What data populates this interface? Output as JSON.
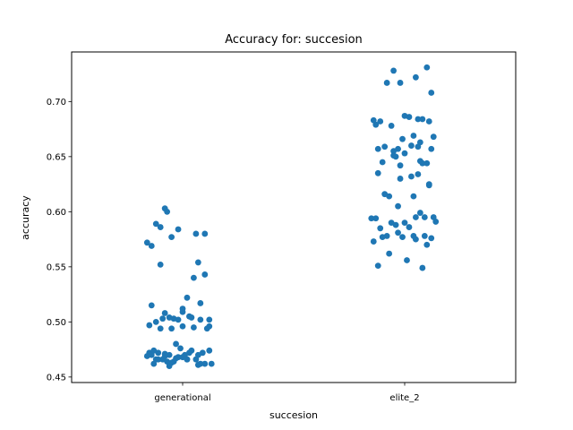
{
  "chart_data": {
    "type": "scatter",
    "title": "Accuracy for: succesion",
    "xlabel": "succesion",
    "ylabel": "accuracy",
    "categories": [
      "generational",
      "elite_2"
    ],
    "ylim": [
      0.445,
      0.745
    ],
    "yticks": [
      0.45,
      0.5,
      0.55,
      0.6,
      0.65,
      0.7
    ],
    "ytick_labels": [
      "0.45",
      "0.50",
      "0.55",
      "0.60",
      "0.65",
      "0.70"
    ],
    "point_color": "#1f77b4",
    "grid": false,
    "series": [
      {
        "category": "generational",
        "jitter": [
          -0.16,
          -0.14,
          -0.12,
          -0.1,
          -0.07,
          -0.08,
          -0.05,
          -0.02,
          0.1,
          0.06,
          0.07,
          -0.1,
          -0.14,
          -0.08,
          0.0,
          0.05,
          0.1,
          0.02,
          -0.06,
          -0.02,
          0.04,
          0.08,
          0.12,
          0.0,
          -0.15,
          -0.12,
          -0.09,
          -0.04,
          0.03,
          0.08,
          0.12,
          -0.1,
          -0.05,
          0.0,
          0.05,
          0.11,
          -0.15,
          -0.11,
          -0.06,
          -0.01,
          0.04,
          0.09,
          0.13,
          -0.16,
          -0.12,
          -0.08,
          -0.03,
          0.02,
          0.07,
          0.12,
          -0.14,
          -0.09,
          -0.04,
          0.01,
          0.06,
          -0.13,
          -0.07,
          -0.02,
          0.03,
          0.08,
          -0.11,
          -0.05,
          0.0,
          -0.13,
          -0.08,
          -0.03,
          0.02,
          0.1,
          -0.06,
          0.07
        ],
        "values": [
          0.572,
          0.569,
          0.589,
          0.586,
          0.6,
          0.603,
          0.577,
          0.584,
          0.58,
          0.58,
          0.554,
          0.552,
          0.515,
          0.508,
          0.512,
          0.54,
          0.543,
          0.522,
          0.504,
          0.502,
          0.504,
          0.502,
          0.496,
          0.496,
          0.497,
          0.5,
          0.503,
          0.503,
          0.505,
          0.517,
          0.502,
          0.494,
          0.494,
          0.509,
          0.495,
          0.494,
          0.472,
          0.472,
          0.47,
          0.476,
          0.474,
          0.472,
          0.462,
          0.469,
          0.466,
          0.469,
          0.467,
          0.466,
          0.47,
          0.474,
          0.47,
          0.466,
          0.464,
          0.47,
          0.466,
          0.462,
          0.464,
          0.468,
          0.472,
          0.462,
          0.466,
          0.463,
          0.468,
          0.474,
          0.471,
          0.48,
          0.466,
          0.462,
          0.46,
          0.461
        ]
      },
      {
        "category": "elite_2",
        "jitter": [
          -0.05,
          0.1,
          0.05,
          -0.02,
          -0.08,
          0.12,
          0.06,
          -0.14,
          0.02,
          -0.11,
          0.0,
          0.08,
          -0.06,
          0.13,
          -0.13,
          -0.01,
          0.04,
          0.11,
          -0.09,
          0.06,
          -0.03,
          0.12,
          0.03,
          -0.12,
          -0.05,
          0.0,
          0.07,
          0.1,
          -0.1,
          -0.04,
          0.08,
          -0.12,
          -0.02,
          0.06,
          0.11,
          -0.07,
          0.04,
          -0.09,
          -0.03,
          0.05,
          0.13,
          -0.15,
          -0.06,
          0.0,
          0.07,
          -0.11,
          -0.04,
          0.02,
          0.09,
          -0.13,
          -0.08,
          -0.01,
          0.05,
          0.12,
          -0.1,
          -0.03,
          0.04,
          0.1,
          -0.14,
          -0.07,
          0.01,
          0.08,
          -0.12,
          -0.05,
          0.03,
          0.11,
          0.07,
          -0.02,
          0.09,
          0.14
        ],
        "values": [
          0.728,
          0.731,
          0.722,
          0.717,
          0.717,
          0.708,
          0.684,
          0.683,
          0.686,
          0.682,
          0.687,
          0.684,
          0.678,
          0.668,
          0.679,
          0.666,
          0.669,
          0.682,
          0.659,
          0.659,
          0.657,
          0.657,
          0.66,
          0.657,
          0.655,
          0.653,
          0.646,
          0.644,
          0.645,
          0.65,
          0.644,
          0.635,
          0.63,
          0.634,
          0.624,
          0.614,
          0.614,
          0.616,
          0.605,
          0.595,
          0.595,
          0.594,
          0.59,
          0.59,
          0.599,
          0.585,
          0.588,
          0.586,
          0.578,
          0.594,
          0.578,
          0.577,
          0.575,
          0.576,
          0.577,
          0.581,
          0.578,
          0.57,
          0.573,
          0.562,
          0.556,
          0.549,
          0.551,
          0.651,
          0.632,
          0.625,
          0.663,
          0.642,
          0.595,
          0.591
        ]
      }
    ]
  }
}
